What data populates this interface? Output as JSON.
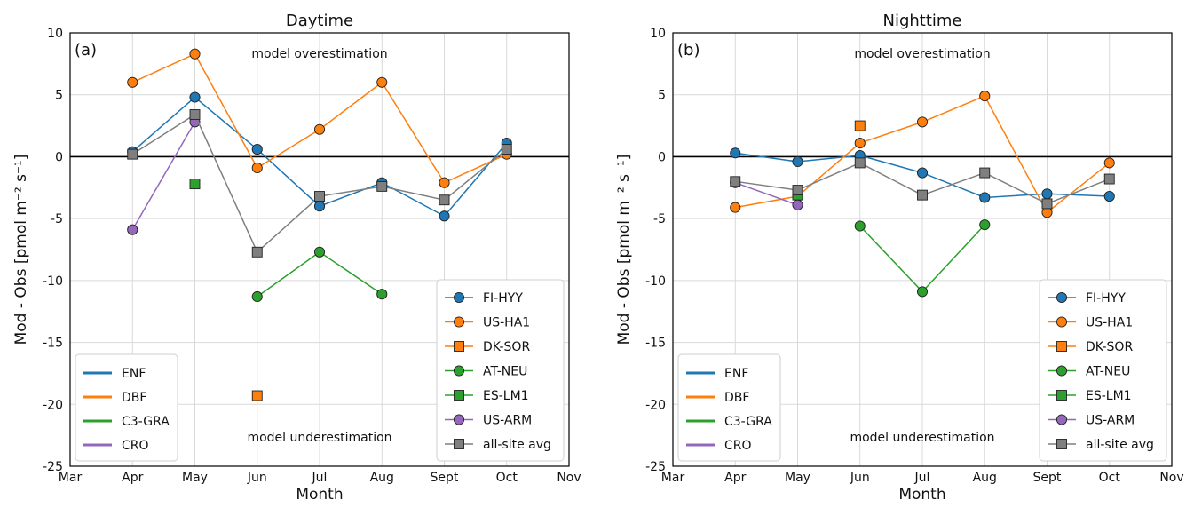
{
  "colors": {
    "enf": "#1f77b4",
    "dbf": "#ff7f0e",
    "c3gra": "#2ca02c",
    "cro": "#9467bd",
    "avg": "#7f7f7f",
    "zero_line": "#000000",
    "grid": "#d9d9d9"
  },
  "shared": {
    "x_label": "Month",
    "y_label": "Mod - Obs [pmol m⁻² s⁻¹]",
    "x_ticks": [
      "Mar",
      "Apr",
      "May",
      "Jun",
      "Jul",
      "Aug",
      "Sept",
      "Oct",
      "Nov"
    ],
    "y_ticks": [
      10,
      5,
      0,
      -5,
      -10,
      -15,
      -20,
      -25
    ],
    "ylim": [
      -25,
      10
    ],
    "annotation_top": "model overestimation",
    "annotation_bottom": "model underestimation",
    "legend_pft": [
      {
        "label": "ENF",
        "color_key": "enf"
      },
      {
        "label": "DBF",
        "color_key": "dbf"
      },
      {
        "label": "C3-GRA",
        "color_key": "c3gra"
      },
      {
        "label": "CRO",
        "color_key": "cro"
      }
    ],
    "legend_sites": [
      {
        "label": "FI-HYY",
        "color_key": "enf",
        "marker": "circle"
      },
      {
        "label": "US-HA1",
        "color_key": "dbf",
        "marker": "circle"
      },
      {
        "label": "DK-SOR",
        "color_key": "dbf",
        "marker": "square"
      },
      {
        "label": "AT-NEU",
        "color_key": "c3gra",
        "marker": "circle"
      },
      {
        "label": "ES-LM1",
        "color_key": "c3gra",
        "marker": "square"
      },
      {
        "label": "US-ARM",
        "color_key": "cro",
        "marker": "circle"
      },
      {
        "label": "all-site avg",
        "color_key": "avg",
        "marker": "square"
      }
    ]
  },
  "chart_data": [
    {
      "type": "line",
      "panel_label": "(a)",
      "title": "Daytime",
      "xlabel": "Month",
      "ylabel": "Mod - Obs [pmol m⁻² s⁻¹]",
      "categories": [
        "Mar",
        "Apr",
        "May",
        "Jun",
        "Jul",
        "Aug",
        "Sept",
        "Oct",
        "Nov"
      ],
      "ylim": [
        -25,
        10
      ],
      "grid": true,
      "legend_placement": [
        "lower-left",
        "lower-right"
      ],
      "series": [
        {
          "name": "FI-HYY",
          "color_key": "enf",
          "marker": "circle",
          "values": [
            null,
            0.4,
            4.8,
            0.6,
            -4.0,
            -2.1,
            -4.8,
            1.1,
            null
          ]
        },
        {
          "name": "US-HA1",
          "color_key": "dbf",
          "marker": "circle",
          "values": [
            null,
            6.0,
            8.3,
            -0.9,
            2.2,
            6.0,
            -2.1,
            0.2,
            null
          ]
        },
        {
          "name": "DK-SOR",
          "color_key": "dbf",
          "marker": "square",
          "values": [
            null,
            null,
            null,
            -19.3,
            null,
            null,
            null,
            null,
            null
          ]
        },
        {
          "name": "AT-NEU",
          "color_key": "c3gra",
          "marker": "circle",
          "values": [
            null,
            null,
            null,
            -11.3,
            -7.7,
            -11.1,
            null,
            null,
            null
          ]
        },
        {
          "name": "ES-LM1",
          "color_key": "c3gra",
          "marker": "square",
          "values": [
            null,
            null,
            -2.2,
            null,
            null,
            null,
            null,
            null,
            null
          ]
        },
        {
          "name": "US-ARM",
          "color_key": "cro",
          "marker": "circle",
          "values": [
            null,
            -5.9,
            2.8,
            null,
            null,
            null,
            null,
            null,
            null
          ]
        },
        {
          "name": "all-site avg",
          "color_key": "avg",
          "marker": "square",
          "values": [
            null,
            0.2,
            3.4,
            -7.7,
            -3.2,
            -2.4,
            -3.5,
            0.6,
            null
          ]
        }
      ]
    },
    {
      "type": "line",
      "panel_label": "(b)",
      "title": "Nighttime",
      "xlabel": "Month",
      "ylabel": "Mod - Obs [pmol m⁻² s⁻¹]",
      "categories": [
        "Mar",
        "Apr",
        "May",
        "Jun",
        "Jul",
        "Aug",
        "Sept",
        "Oct",
        "Nov"
      ],
      "ylim": [
        -25,
        10
      ],
      "grid": true,
      "legend_placement": [
        "lower-left",
        "lower-right"
      ],
      "series": [
        {
          "name": "FI-HYY",
          "color_key": "enf",
          "marker": "circle",
          "values": [
            null,
            0.3,
            -0.4,
            0.1,
            -1.3,
            -3.3,
            -3.0,
            -3.2,
            null
          ]
        },
        {
          "name": "US-HA1",
          "color_key": "dbf",
          "marker": "circle",
          "values": [
            null,
            -4.1,
            -3.2,
            1.1,
            2.8,
            4.9,
            -4.5,
            -0.5,
            null
          ]
        },
        {
          "name": "DK-SOR",
          "color_key": "dbf",
          "marker": "square",
          "values": [
            null,
            null,
            null,
            2.5,
            null,
            null,
            null,
            null,
            null
          ]
        },
        {
          "name": "AT-NEU",
          "color_key": "c3gra",
          "marker": "circle",
          "values": [
            null,
            null,
            null,
            -5.6,
            -10.9,
            -5.5,
            null,
            null,
            null
          ]
        },
        {
          "name": "ES-LM1",
          "color_key": "c3gra",
          "marker": "square",
          "values": [
            null,
            null,
            -3.1,
            null,
            null,
            null,
            null,
            null,
            null
          ]
        },
        {
          "name": "US-ARM",
          "color_key": "cro",
          "marker": "circle",
          "values": [
            null,
            -2.1,
            -3.9,
            null,
            null,
            null,
            null,
            null,
            null
          ]
        },
        {
          "name": "all-site avg",
          "color_key": "avg",
          "marker": "square",
          "values": [
            null,
            -2.0,
            -2.7,
            -0.5,
            -3.1,
            -1.3,
            -3.8,
            -1.8,
            null
          ]
        }
      ]
    }
  ]
}
